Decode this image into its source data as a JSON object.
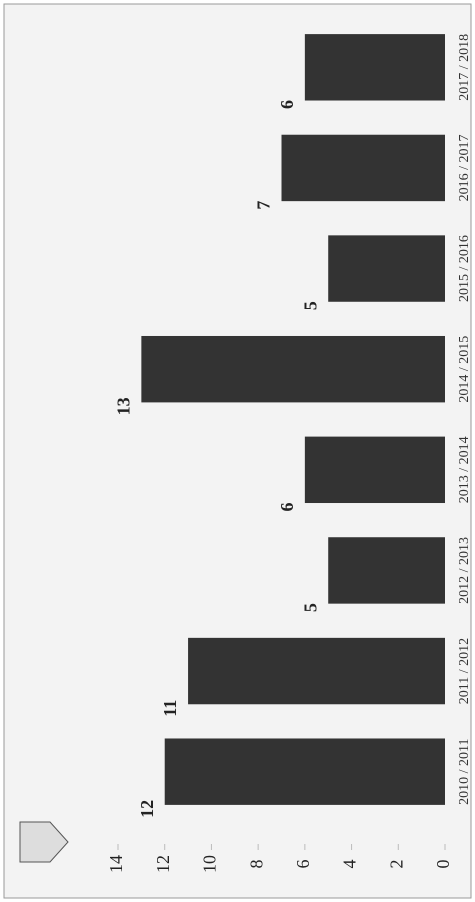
{
  "chart_data": {
    "type": "bar",
    "categories": [
      "2010 / 2011",
      "2011 / 2012",
      "2012 / 2013",
      "2013 / 2014",
      "2014 / 2015",
      "2015 / 2016",
      "2016 / 2017",
      "2017 / 2018"
    ],
    "values": [
      12,
      11,
      5,
      6,
      13,
      5,
      7,
      6
    ],
    "color": "#333333",
    "ylim": [
      0,
      14
    ],
    "yticks": [
      0,
      2,
      4,
      6,
      8,
      10,
      12,
      14
    ]
  }
}
